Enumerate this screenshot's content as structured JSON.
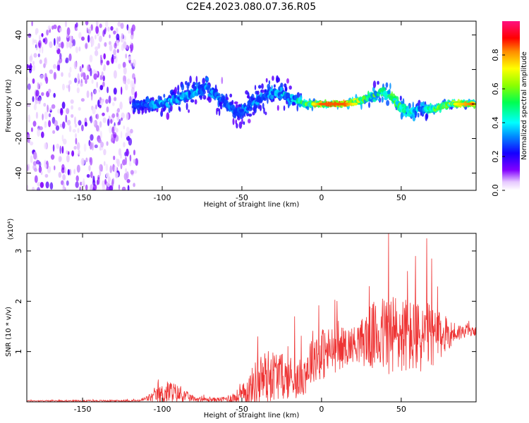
{
  "title": "C2E4.2023.080.07.36.R05",
  "chart_data": [
    {
      "type": "heatmap",
      "title": "C2E4.2023.080.07.36.R05",
      "xlabel": "Height of straight line (km)",
      "ylabel": "Frequency (Hz)",
      "xlim": [
        -185,
        97
      ],
      "ylim": [
        -50,
        48
      ],
      "x_ticks": [
        -150,
        -100,
        -50,
        0,
        50
      ],
      "y_ticks": [
        -40,
        -20,
        0,
        20,
        40
      ],
      "colorbar": {
        "label": "Normalized spectral amplitude",
        "range": [
          0,
          1
        ],
        "ticks": [
          "0.0",
          "0.2",
          "0.4",
          "0.6",
          "0.8"
        ],
        "colormap": [
          "#ffffff",
          "#8000ff",
          "#0000ff",
          "#00ffff",
          "#00ff00",
          "#ffff00",
          "#ff8000",
          "#ff0000",
          "#ff1080"
        ]
      },
      "ridge": {
        "x": [
          -118,
          -100,
          -85,
          -72,
          -62,
          -52,
          -40,
          -28,
          -18,
          -10,
          0,
          15,
          28,
          38,
          45,
          55,
          62,
          70,
          80,
          95
        ],
        "y": [
          0,
          0,
          5,
          10,
          2,
          -5,
          2,
          8,
          3,
          0,
          0,
          0,
          3,
          7,
          3,
          -5,
          -3,
          -3,
          0,
          0
        ],
        "spread": [
          8,
          9,
          12,
          14,
          14,
          13,
          13,
          14,
          9,
          4,
          2,
          2,
          6,
          9,
          9,
          10,
          7,
          4,
          3,
          2
        ],
        "peak": [
          0.3,
          0.35,
          0.35,
          0.35,
          0.3,
          0.3,
          0.35,
          0.35,
          0.4,
          0.55,
          0.85,
          0.85,
          0.55,
          0.5,
          0.6,
          0.45,
          0.4,
          0.55,
          0.65,
          0.85
        ]
      },
      "noise_region_x": [
        -185,
        -118
      ]
    },
    {
      "type": "line",
      "xlabel": "Height of straight line (km)",
      "ylabel": "SNR (10 * v/v)",
      "y_scale_label": "(x10⁴)",
      "xlim": [
        -185,
        97
      ],
      "ylim": [
        0,
        3.35
      ],
      "x_ticks": [
        -150,
        -100,
        -50,
        0,
        50
      ],
      "y_ticks": [
        1,
        2,
        3
      ],
      "color": "#ee3333",
      "envelope": {
        "x": [
          -185,
          -115,
          -108,
          -100,
          -95,
          -90,
          -80,
          -70,
          -62,
          -55,
          -50,
          -45,
          -40,
          -35,
          -28,
          -20,
          -15,
          -10,
          -5,
          0,
          5,
          10,
          15,
          20,
          25,
          28,
          33,
          40,
          45,
          50,
          55,
          60,
          65,
          70,
          75,
          80,
          85,
          90,
          97
        ],
        "base": [
          0.02,
          0.02,
          0.08,
          0.15,
          0.2,
          0.15,
          0.06,
          0.04,
          0.05,
          0.08,
          0.12,
          0.25,
          0.42,
          0.5,
          0.55,
          0.45,
          0.42,
          0.6,
          0.95,
          0.95,
          1.0,
          1.05,
          1.1,
          1.15,
          1.2,
          1.25,
          1.3,
          1.35,
          1.3,
          1.35,
          1.3,
          1.25,
          1.3,
          1.3,
          1.3,
          1.35,
          1.38,
          1.4,
          1.4
        ],
        "amp": [
          0.01,
          0.02,
          0.08,
          0.2,
          0.25,
          0.18,
          0.05,
          0.04,
          0.05,
          0.12,
          0.2,
          0.35,
          0.5,
          0.55,
          0.5,
          0.4,
          0.35,
          0.45,
          0.55,
          0.55,
          0.5,
          0.45,
          0.4,
          0.35,
          0.45,
          0.6,
          0.7,
          0.8,
          0.9,
          0.8,
          0.75,
          0.75,
          0.7,
          0.6,
          0.45,
          0.3,
          0.2,
          0.12,
          0.08
        ]
      },
      "spikes": [
        {
          "x": -40,
          "y": 1.3
        },
        {
          "x": -17,
          "y": 1.7
        },
        {
          "x": 30,
          "y": 2.3
        },
        {
          "x": 42,
          "y": 3.35
        },
        {
          "x": 54,
          "y": 2.6
        },
        {
          "x": 59,
          "y": 2.9
        },
        {
          "x": 66,
          "y": 3.25
        },
        {
          "x": 69,
          "y": 2.85
        }
      ]
    }
  ]
}
